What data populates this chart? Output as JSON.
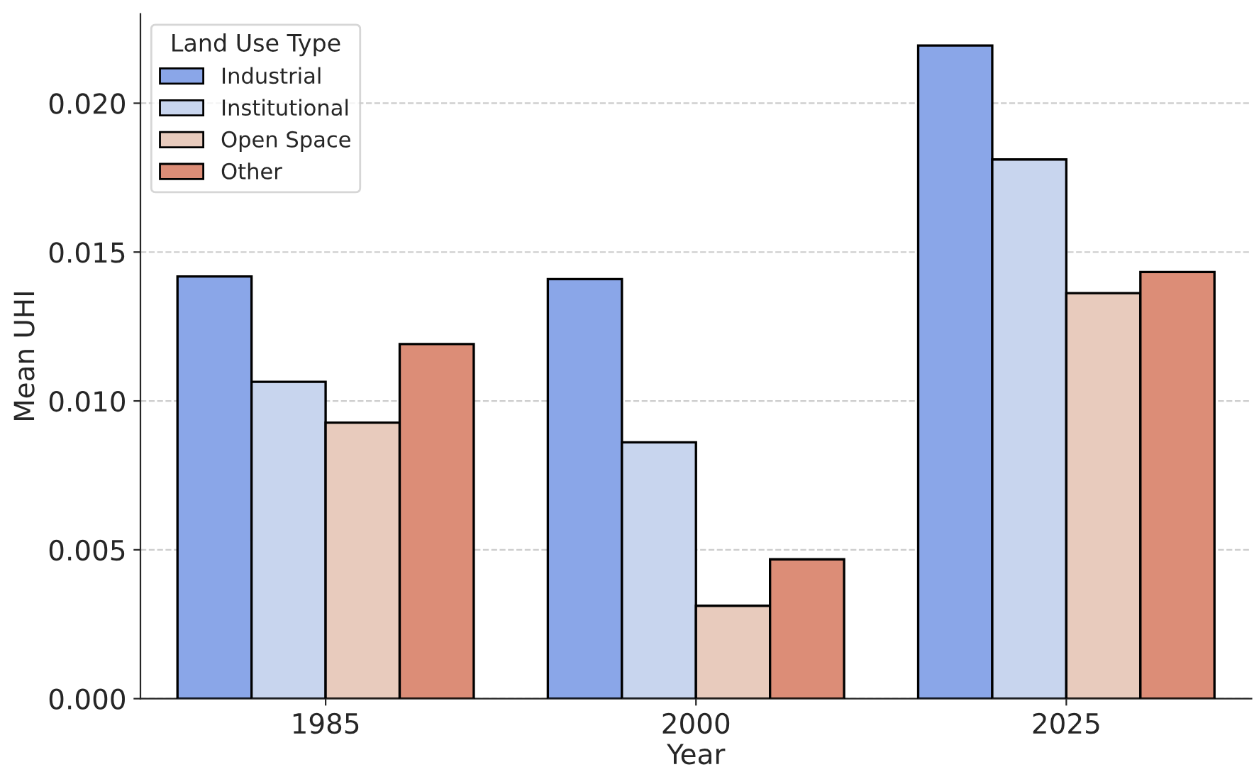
{
  "chart_data": {
    "type": "bar",
    "xlabel": "Year",
    "ylabel": "Mean UHI",
    "legend_title": "Land Use Type",
    "categories": [
      "1985",
      "2000",
      "2025"
    ],
    "series": [
      {
        "name": "Industrial",
        "color": "#8aa6e8",
        "values": [
          0.01418,
          0.01409,
          0.02194
        ]
      },
      {
        "name": "Institutional",
        "color": "#c8d5ee",
        "values": [
          0.01064,
          0.00861,
          0.01811
        ]
      },
      {
        "name": "Open Space",
        "color": "#e8cbbd",
        "values": [
          0.00927,
          0.00312,
          0.01362
        ]
      },
      {
        "name": "Other",
        "color": "#dc8d77",
        "values": [
          0.01191,
          0.00468,
          0.01433
        ]
      }
    ],
    "ylim": [
      0,
      0.023
    ],
    "yticks": [
      {
        "value": 0,
        "label": "0.000"
      },
      {
        "value": 0.005,
        "label": "0.005"
      },
      {
        "value": 0.01,
        "label": "0.010"
      },
      {
        "value": 0.015,
        "label": "0.015"
      },
      {
        "value": 0.02,
        "label": "0.020"
      }
    ],
    "grid": "y",
    "legend": "top left"
  }
}
